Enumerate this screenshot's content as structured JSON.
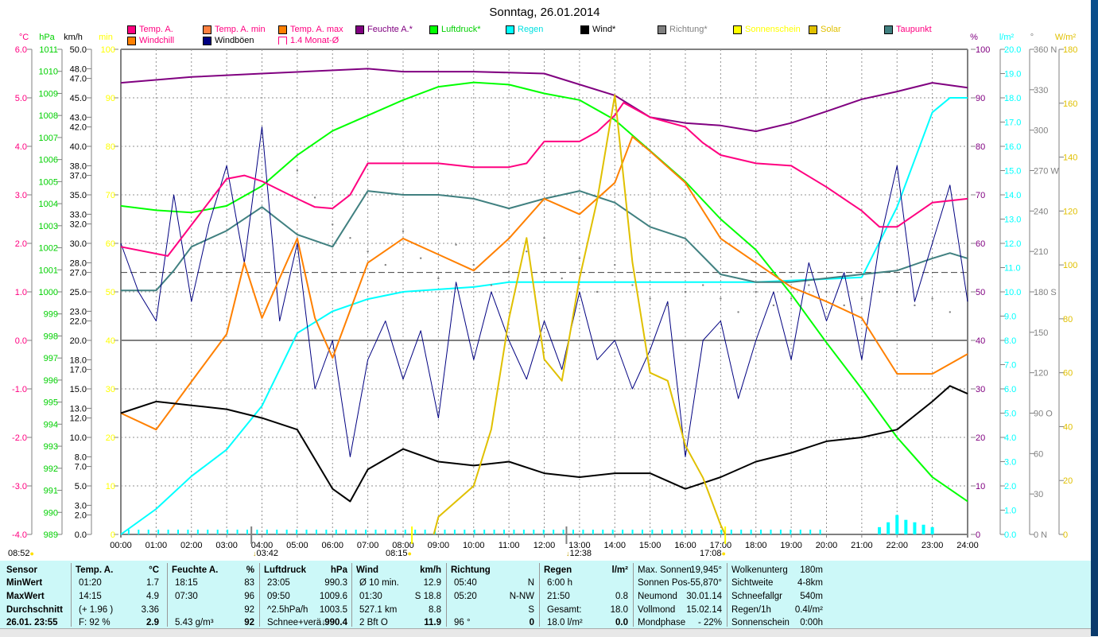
{
  "title": "Sonntag, 26.01.2014",
  "legend": [
    {
      "label": "Temp. A.",
      "color": "#ff0080",
      "text_color": "#ff0080"
    },
    {
      "label": "Temp. A. min",
      "color": "#ff8040",
      "text_color": "#ff0080"
    },
    {
      "label": "Temp. A. max",
      "color": "#ff8000",
      "text_color": "#ff0080"
    },
    {
      "label": "Feuchte A.*",
      "color": "#800080",
      "text_color": "#800080"
    },
    {
      "label": "Luftdruck*",
      "color": "#00ff00",
      "text_color": "#00d000"
    },
    {
      "label": "Regen",
      "color": "#00ffff",
      "text_color": "#00e0e0"
    },
    {
      "label": "Wind*",
      "color": "#000000",
      "text_color": "#000000"
    },
    {
      "label": "Richtung*",
      "color": "#808080",
      "text_color": "#808080"
    },
    {
      "label": "Sonnenschein",
      "color": "#ffff00",
      "text_color": "#ffff00"
    },
    {
      "label": "Solar",
      "color": "#e0c000",
      "text_color": "#e0c000"
    },
    {
      "label": "Taupunkt",
      "color": "#408080",
      "text_color": "#ff0080"
    },
    {
      "label": "Windchill",
      "color": "#ff8000",
      "text_color": "#ff0080"
    },
    {
      "label": "Windböen",
      "color": "#000080",
      "text_color": "#000000"
    },
    {
      "label": "1.4 Monat-Ø",
      "color": "#ff0080",
      "text_color": "#ff0080",
      "open": true
    }
  ],
  "chart_data": {
    "type": "line",
    "title": "Sonntag, 26.01.2014",
    "x_ticks": [
      "00:00",
      "01:00",
      "02:00",
      "03:00",
      "04:00",
      "05:00",
      "06:00",
      "07:00",
      "08:00",
      "09:00",
      "10:00",
      "11:00",
      "12:00",
      "13:00",
      "14:00",
      "15:00",
      "16:00",
      "17:00",
      "18:00",
      "19:00",
      "20:00",
      "21:00",
      "22:00",
      "23:00",
      "24:00"
    ],
    "xlim_hours": [
      0,
      24
    ],
    "grid": true,
    "axes": {
      "temp": {
        "unit": "°C",
        "color": "#ff0080",
        "range": [
          -4,
          6
        ],
        "ticks": [
          "6.0",
          "5.0",
          "4.0",
          "3.0",
          "2.0",
          "1.0",
          "0.0",
          "-1.0",
          "-2.0",
          "-3.0",
          "-4.0"
        ]
      },
      "pressure": {
        "unit": "hPa",
        "color": "#00ff00",
        "range": [
          989,
          1011
        ],
        "ticks": [
          "1011",
          "1010",
          "1009",
          "1008",
          "1007",
          "1006",
          "1005",
          "1004",
          "1003",
          "1002",
          "1001",
          "1000",
          "999",
          "998",
          "997",
          "996",
          "995",
          "994",
          "993",
          "992",
          "991",
          "990",
          "989"
        ]
      },
      "wind": {
        "unit": "km/h",
        "color": "#000000",
        "range": [
          0,
          50
        ],
        "ticks": [
          "50.0",
          "48.0",
          "47.0",
          "45.0",
          "43.0",
          "42.0",
          "40.0",
          "38.0",
          "37.0",
          "35.0",
          "33.0",
          "32.0",
          "30.0",
          "28.0",
          "27.0",
          "25.0",
          "23.0",
          "22.0",
          "20.0",
          "18.0",
          "17.0",
          "15.0",
          "13.0",
          "12.0",
          "10.0",
          "8.0",
          "7.0",
          "5.0",
          "3.0",
          "2.0",
          "0.0"
        ]
      },
      "sunshine": {
        "unit": "min",
        "color": "#ffff00",
        "range": [
          0,
          100
        ],
        "ticks": [
          "100",
          "90",
          "80",
          "70",
          "60",
          "50",
          "40",
          "30",
          "20",
          "10",
          "0"
        ]
      },
      "humidity": {
        "unit": "%",
        "color": "#800080",
        "range": [
          0,
          100
        ],
        "ticks": [
          "100",
          "90",
          "80",
          "70",
          "60",
          "50",
          "40",
          "30",
          "20",
          "10",
          "0"
        ]
      },
      "rain": {
        "unit": "l/m²",
        "color": "#00ffff",
        "range": [
          0,
          20
        ],
        "ticks": [
          "20.0",
          "19.0",
          "18.0",
          "17.0",
          "16.0",
          "15.0",
          "14.0",
          "13.0",
          "12.0",
          "11.0",
          "10.0",
          "9.0",
          "8.0",
          "7.0",
          "6.0",
          "5.0",
          "4.0",
          "3.0",
          "2.0",
          "1.0",
          "0.0"
        ]
      },
      "direction": {
        "unit": "°",
        "color": "#808080",
        "range": [
          0,
          360
        ],
        "ticks": [
          "360 N",
          "330",
          "300",
          "270 W",
          "240",
          "210",
          "180 S",
          "150",
          "120",
          "90  O",
          "60",
          "30",
          "0   N"
        ]
      },
      "solar": {
        "unit": "W/m²",
        "color": "#e0c000",
        "range": [
          0,
          180
        ],
        "ticks": [
          "180",
          "160",
          "140",
          "120",
          "100",
          "80",
          "60",
          "40",
          "20",
          "0"
        ]
      }
    },
    "reference_lines": [
      {
        "name": "1.4 Monat-Ø",
        "axis": "temp",
        "value": 1.4,
        "style": "dashed"
      },
      {
        "name": "0 °C",
        "axis": "temp",
        "value": 0,
        "style": "solid"
      }
    ],
    "series": [
      {
        "name": "Feuchte A.*",
        "axis": "humidity",
        "color": "#800080",
        "x": [
          0,
          2,
          4,
          7,
          8,
          10,
          12,
          14,
          15,
          16,
          17,
          18,
          19,
          20,
          21,
          22,
          23,
          24
        ],
        "y": [
          93.1,
          94.3,
          95,
          96,
          95.4,
          95.4,
          95,
          90.5,
          86,
          84.8,
          84.3,
          83.1,
          84.8,
          87.2,
          89.7,
          91.3,
          93.1,
          92.1
        ]
      },
      {
        "name": "Luftdruck*",
        "axis": "pressure",
        "color": "#00ff00",
        "x": [
          0,
          1,
          2,
          3,
          4,
          5,
          6,
          7,
          8,
          9,
          10,
          11,
          12,
          13,
          14,
          15,
          16,
          17,
          18,
          19,
          20,
          21,
          22,
          23,
          24
        ],
        "y": [
          1003.9,
          1003.7,
          1003.6,
          1003.9,
          1004.8,
          1006.2,
          1007.3,
          1008,
          1008.7,
          1009.3,
          1009.5,
          1009.4,
          1009,
          1008.7,
          1007.8,
          1006.4,
          1005,
          1003.3,
          1001.9,
          999.9,
          997.7,
          995.6,
          993.4,
          991.6,
          990.5
        ]
      },
      {
        "name": "Regen",
        "axis": "rain",
        "color": "#00ffff",
        "x": [
          0,
          1,
          2,
          3,
          4,
          5,
          6,
          7,
          8,
          9,
          10,
          11,
          12,
          17,
          18,
          21,
          22,
          23,
          23.5,
          24
        ],
        "y": [
          0,
          1.05,
          2.4,
          3.5,
          5.3,
          8.3,
          9.2,
          9.7,
          10,
          10.1,
          10.2,
          10.4,
          10.4,
          10.4,
          10.4,
          10.6,
          13.5,
          17.4,
          18,
          18
        ]
      },
      {
        "name": "Taupunkt",
        "axis": "temp",
        "color": "#408080",
        "x": [
          0,
          1,
          1.5,
          2,
          3,
          4,
          5,
          6,
          7,
          8,
          9,
          10,
          11,
          12,
          13,
          14,
          15,
          16,
          17,
          18,
          19,
          20,
          21,
          22,
          23,
          23.5,
          24
        ],
        "y": [
          1.03,
          1.03,
          1.44,
          1.93,
          2.26,
          2.75,
          2.18,
          1.93,
          3.08,
          3.0,
          3.0,
          2.92,
          2.72,
          2.92,
          3.08,
          2.84,
          2.34,
          2.1,
          1.36,
          1.2,
          1.2,
          1.28,
          1.36,
          1.44,
          1.69,
          1.8,
          1.69
        ]
      },
      {
        "name": "Windböen",
        "axis": "wind",
        "color": "#000080",
        "x": [
          0,
          0.5,
          1,
          1.5,
          2,
          2.5,
          3,
          3.5,
          4,
          4.5,
          5,
          5.5,
          6,
          6.5,
          7,
          7.5,
          8,
          8.5,
          9,
          9.5,
          10,
          10.5,
          11,
          11.5,
          12,
          12.5,
          13,
          13.5,
          14,
          14.5,
          15,
          15.5,
          16,
          16.5,
          17,
          17.5,
          18,
          18.5,
          19,
          19.5,
          20,
          20.5,
          21,
          21.5,
          22,
          22.5,
          23,
          23.5,
          24
        ],
        "y": [
          30,
          25,
          22,
          35,
          24,
          32,
          38,
          28,
          42,
          22,
          30,
          15,
          20,
          8,
          18,
          22,
          16,
          21,
          12,
          26,
          18,
          25,
          20,
          16,
          22,
          17,
          25,
          18,
          20,
          15,
          19,
          24,
          8,
          20,
          22,
          14,
          20,
          25,
          18,
          28,
          22,
          27,
          18,
          30,
          38,
          24,
          30,
          36,
          24
        ]
      },
      {
        "name": "Windchill",
        "axis": "temp",
        "color": "#ff8000",
        "x": [
          0,
          1,
          2,
          3,
          3.5,
          4,
          5,
          5.5,
          6,
          7,
          8,
          9,
          10,
          11,
          12,
          13,
          14,
          14.5,
          15,
          16,
          17,
          18,
          19,
          20,
          21,
          22,
          23,
          24
        ],
        "y": [
          -1.5,
          -1.84,
          -0.85,
          0.13,
          1.6,
          0.46,
          2.1,
          0.46,
          -0.36,
          1.6,
          2.1,
          1.77,
          1.44,
          2.1,
          2.92,
          2.6,
          3.25,
          4.2,
          3.9,
          3.25,
          2.1,
          1.6,
          1.1,
          0.8,
          0.46,
          -0.69,
          -0.69,
          -0.28
        ]
      },
      {
        "name": "Temp. A.",
        "axis": "temp",
        "color": "#ff0080",
        "x": [
          0,
          1.33,
          3,
          3.5,
          4,
          5,
          5.5,
          6,
          6.5,
          7,
          8,
          9,
          10,
          11,
          11.5,
          12,
          13,
          13.5,
          14,
          14.25,
          15,
          16,
          16.5,
          17,
          18,
          19,
          20,
          21,
          21.5,
          22,
          23,
          24
        ],
        "y": [
          1.93,
          1.74,
          3.33,
          3.4,
          3.28,
          2.92,
          2.75,
          2.72,
          3.0,
          3.65,
          3.65,
          3.65,
          3.57,
          3.57,
          3.65,
          4.1,
          4.1,
          4.3,
          4.64,
          4.9,
          4.6,
          4.4,
          4.07,
          3.82,
          3.65,
          3.6,
          3.16,
          2.67,
          2.34,
          2.34,
          2.84,
          2.92
        ]
      },
      {
        "name": "Wind*",
        "axis": "wind",
        "color": "#000000",
        "x": [
          0,
          1,
          2,
          3,
          4,
          5,
          6,
          6.5,
          7,
          8,
          9,
          10,
          11,
          12,
          13,
          14,
          15,
          16,
          17,
          18,
          19,
          20,
          21,
          22,
          23,
          23.5,
          24
        ],
        "y": [
          12.5,
          13.7,
          13.3,
          12.9,
          12,
          10.8,
          4.7,
          3.4,
          6.7,
          8.8,
          7.5,
          7.1,
          7.5,
          6.3,
          5.9,
          6.3,
          6.3,
          4.7,
          5.9,
          7.5,
          8.4,
          9.6,
          10,
          10.8,
          13.7,
          15.3,
          14.5
        ]
      },
      {
        "name": "Solar",
        "axis": "solar",
        "color": "#e0c000",
        "x": [
          8.87,
          9,
          10,
          10.5,
          11,
          11.5,
          12,
          12.5,
          13,
          13.5,
          14,
          14.5,
          15,
          15.5,
          16,
          16.5,
          17,
          17.13
        ],
        "y": [
          0,
          6.5,
          18,
          39,
          80,
          110,
          65,
          57,
          95,
          124,
          163,
          101,
          60,
          57,
          33,
          21,
          3.5,
          0
        ]
      },
      {
        "name": "Richtung*",
        "axis": "direction",
        "color": "#808080",
        "style": "dots",
        "x": [
          5,
          5.5,
          6,
          6.5,
          7,
          7.5,
          8,
          8.5,
          9,
          9.5,
          10,
          10.5,
          11,
          11.5,
          12,
          12.5,
          13,
          13.5,
          14,
          14.5,
          15,
          15.5,
          16,
          16.5,
          17,
          17.5,
          18,
          18.5,
          19,
          19.5,
          20,
          20.5,
          21,
          21.5,
          22,
          22.5,
          23,
          23.5
        ],
        "y": [
          270,
          250,
          230,
          220,
          210,
          200,
          225,
          205,
          190,
          215,
          200,
          185,
          195,
          210,
          220,
          190,
          205,
          180,
          200,
          185,
          175,
          170,
          180,
          185,
          175,
          165,
          180,
          170,
          175,
          185,
          180,
          170,
          175,
          180,
          180,
          170,
          175,
          165
        ]
      }
    ],
    "rain_bars": {
      "axis": "rain",
      "x": [
        21.5,
        21.75,
        22,
        22.25,
        22.5,
        22.75,
        23
      ],
      "y": [
        0.3,
        0.5,
        0.8,
        0.6,
        0.5,
        0.4,
        0.3
      ]
    }
  },
  "time_markers": [
    {
      "label": "08:52",
      "icon": "sunrise-icon"
    },
    {
      "label": "03:42",
      "icon": "moonrise-icon"
    },
    {
      "label": "08:15",
      "icon": "sun-icon"
    },
    {
      "label": "12:38",
      "icon": "moon-icon"
    },
    {
      "label": "17:08",
      "icon": "sunset-icon"
    }
  ],
  "table": {
    "groups": [
      {
        "header": [
          "Sensor",
          ""
        ],
        "rows": [
          [
            "MinWert",
            ""
          ],
          [
            "MaxWert",
            ""
          ],
          [
            "Durchschnitt",
            ""
          ],
          [
            "26.01. 23:55",
            ""
          ]
        ]
      },
      {
        "header": [
          "Temp. A.",
          "°C"
        ],
        "rows": [
          [
            "01:20",
            "1.7"
          ],
          [
            "14:15",
            "4.9"
          ],
          [
            "(+ 1.96 )",
            "3.36"
          ],
          [
            "F: 92 %",
            "2.9"
          ]
        ]
      },
      {
        "header": [
          "Feuchte A.",
          "%"
        ],
        "rows": [
          [
            "18:15",
            "83"
          ],
          [
            "07:30",
            "96"
          ],
          [
            "",
            "92"
          ],
          [
            "5.43 g/m³",
            "92"
          ]
        ]
      },
      {
        "header": [
          "Luftdruck",
          "hPa"
        ],
        "rows": [
          [
            "23:05",
            "990.3"
          ],
          [
            "09:50",
            "1009.6"
          ],
          [
            "^2.5hPa/h",
            "1003.5"
          ],
          [
            "Schnee+verä↓",
            "990.4"
          ]
        ]
      },
      {
        "header": [
          "Wind",
          "km/h"
        ],
        "rows": [
          [
            "Ø 10 min.",
            "12.9"
          ],
          [
            "01:30",
            "S 18.8"
          ],
          [
            "527.1 km",
            "8.8"
          ],
          [
            "2 Bft O",
            "11.9"
          ]
        ]
      },
      {
        "header": [
          "Richtung",
          ""
        ],
        "rows": [
          [
            "05:40",
            "N"
          ],
          [
            "05:20",
            "N-NW"
          ],
          [
            "",
            "S"
          ],
          [
            "96 °",
            "0"
          ]
        ]
      },
      {
        "header": [
          "Regen",
          "l/m²"
        ],
        "rows": [
          [
            "6:00 h",
            ""
          ],
          [
            "21:50",
            "0.8"
          ],
          [
            "Gesamt:",
            "18.0"
          ],
          [
            "18.0 l/m²",
            "0.0"
          ]
        ]
      },
      {
        "header": [
          "Max. Sonnen",
          "19,945°"
        ],
        "rows": [
          [
            "Sonnen Pos",
            "-55,870°"
          ],
          [
            "Neumond",
            "30.01.14"
          ],
          [
            "Vollmond",
            "15.02.14"
          ],
          [
            "Mondphase",
            "- 22%"
          ]
        ]
      },
      {
        "header": [
          "Wolkenunterg",
          "180m"
        ],
        "rows": [
          [
            "Sichtweite",
            "4-8km"
          ],
          [
            "Schneefallgr",
            "540m"
          ],
          [
            "Regen/1h",
            "0.4l/m²"
          ],
          [
            "Sonnenschein",
            "0:00h"
          ]
        ]
      }
    ]
  }
}
